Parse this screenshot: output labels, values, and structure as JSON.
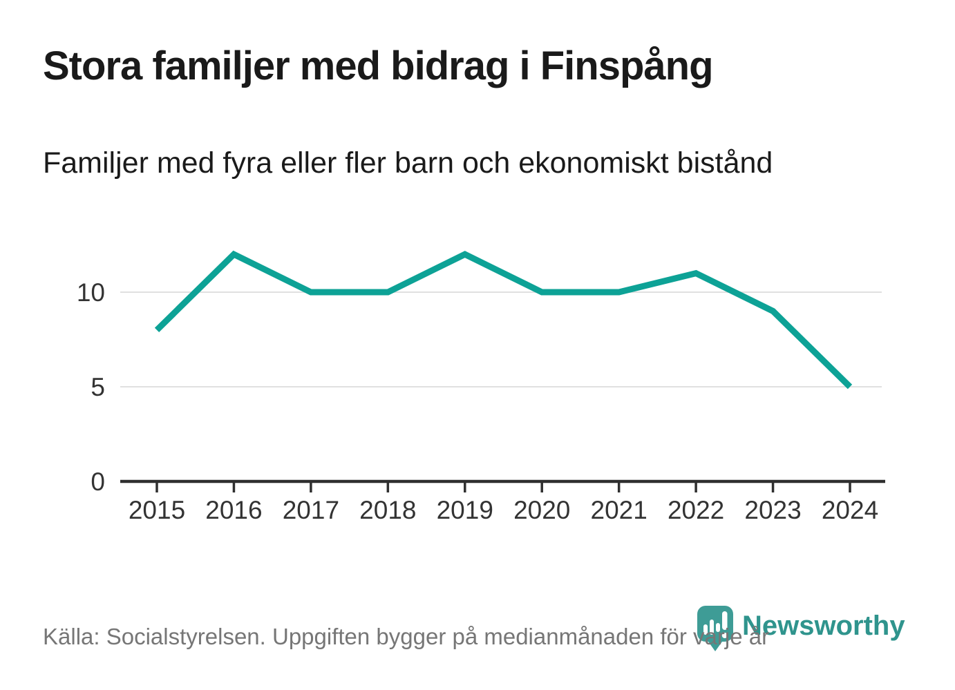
{
  "header": {
    "title": "Stora familjer med bidrag i Finspång",
    "subtitle": "Familjer med fyra eller fler barn och ekonomiskt bistånd"
  },
  "footer": {
    "source": "Källa: Socialstyrelsen. Uppgiften bygger på medianmånaden för varje år",
    "brand": "Newsworthy",
    "brand_icon": "newsworthy-pin-with-bar-chart-icon"
  },
  "colors": {
    "line": "#0da296",
    "grid": "#e0e0e0",
    "axis": "#2f2f2f",
    "tick_label": "#333333",
    "title": "#1a1a1a",
    "source": "#767676",
    "brand_text": "#2f948d",
    "brand_icon": "#3e9c96"
  },
  "chart_data": {
    "type": "line",
    "title": "Stora familjer med bidrag i Finspång",
    "subtitle": "Familjer med fyra eller fler barn och ekonomiskt bistånd",
    "x": [
      2015,
      2016,
      2017,
      2018,
      2019,
      2020,
      2021,
      2022,
      2023,
      2024
    ],
    "series": [
      {
        "name": "Familjer med fyra eller fler barn och ekonomiskt bistånd",
        "values": [
          8,
          12,
          10,
          10,
          12,
          10,
          10,
          11,
          9,
          5
        ]
      }
    ],
    "xlabel": "",
    "ylabel": "",
    "yticks": [
      0,
      5,
      10
    ],
    "ylim": [
      0,
      13
    ],
    "grid": "horizontal",
    "legend": "none",
    "line_width": 9
  }
}
